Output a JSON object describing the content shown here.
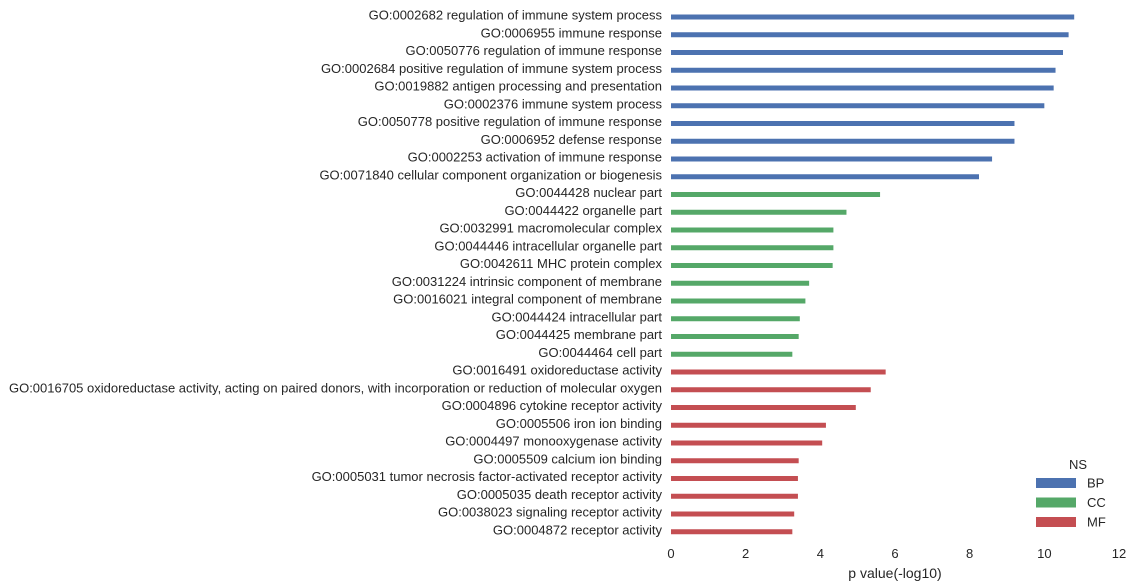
{
  "chart_data": {
    "type": "bar",
    "orientation": "horizontal",
    "xlabel": "p value(-log10)",
    "xlim": [
      0,
      12
    ],
    "xticks": [
      0,
      2,
      4,
      6,
      8,
      10,
      12
    ],
    "grid": false,
    "legend": {
      "title": "NS",
      "placement": "bottom-right",
      "entries": [
        {
          "name": "BP",
          "color": "#4c72b0"
        },
        {
          "name": "CC",
          "color": "#55a868"
        },
        {
          "name": "MF",
          "color": "#c44e52"
        }
      ]
    },
    "series": [
      {
        "name": "BP",
        "color": "#4c72b0",
        "items": [
          {
            "label": "GO:0002682 regulation of immune system process",
            "value": 10.8
          },
          {
            "label": "GO:0006955 immune response",
            "value": 10.65
          },
          {
            "label": "GO:0050776 regulation of immune response",
            "value": 10.5
          },
          {
            "label": "GO:0002684 positive regulation of immune system process",
            "value": 10.3
          },
          {
            "label": "GO:0019882 antigen processing and presentation",
            "value": 10.25
          },
          {
            "label": "GO:0002376 immune system process",
            "value": 10.0
          },
          {
            "label": "GO:0050778 positive regulation of immune response",
            "value": 9.2
          },
          {
            "label": "GO:0006952 defense response",
            "value": 9.2
          },
          {
            "label": "GO:0002253 activation of immune response",
            "value": 8.6
          },
          {
            "label": "GO:0071840 cellular component organization or biogenesis",
            "value": 8.25
          }
        ]
      },
      {
        "name": "CC",
        "color": "#55a868",
        "items": [
          {
            "label": "GO:0044428 nuclear part",
            "value": 5.6
          },
          {
            "label": "GO:0044422 organelle part",
            "value": 4.7
          },
          {
            "label": "GO:0032991 macromolecular complex",
            "value": 4.35
          },
          {
            "label": "GO:0044446 intracellular organelle part",
            "value": 4.35
          },
          {
            "label": "GO:0042611 MHC protein complex",
            "value": 4.33
          },
          {
            "label": "GO:0031224 intrinsic component of membrane",
            "value": 3.7
          },
          {
            "label": "GO:0016021 integral component of membrane",
            "value": 3.6
          },
          {
            "label": "GO:0044424 intracellular part",
            "value": 3.45
          },
          {
            "label": "GO:0044425 membrane part",
            "value": 3.42
          },
          {
            "label": "GO:0044464 cell part",
            "value": 3.25
          }
        ]
      },
      {
        "name": "MF",
        "color": "#c44e52",
        "items": [
          {
            "label": "GO:0016491 oxidoreductase activity",
            "value": 5.75
          },
          {
            "label": "GO:0016705 oxidoreductase activity, acting on paired donors, with incorporation or reduction of molecular oxygen",
            "value": 5.35
          },
          {
            "label": "GO:0004896 cytokine receptor activity",
            "value": 4.95
          },
          {
            "label": "GO:0005506 iron ion binding",
            "value": 4.15
          },
          {
            "label": "GO:0004497 monooxygenase activity",
            "value": 4.05
          },
          {
            "label": "GO:0005509 calcium ion binding",
            "value": 3.42
          },
          {
            "label": "GO:0005031 tumor necrosis factor-activated receptor activity",
            "value": 3.4
          },
          {
            "label": "GO:0005035 death receptor activity",
            "value": 3.4
          },
          {
            "label": "GO:0038023 signaling receptor activity",
            "value": 3.3
          },
          {
            "label": "GO:0004872 receptor activity",
            "value": 3.25
          }
        ]
      }
    ]
  }
}
